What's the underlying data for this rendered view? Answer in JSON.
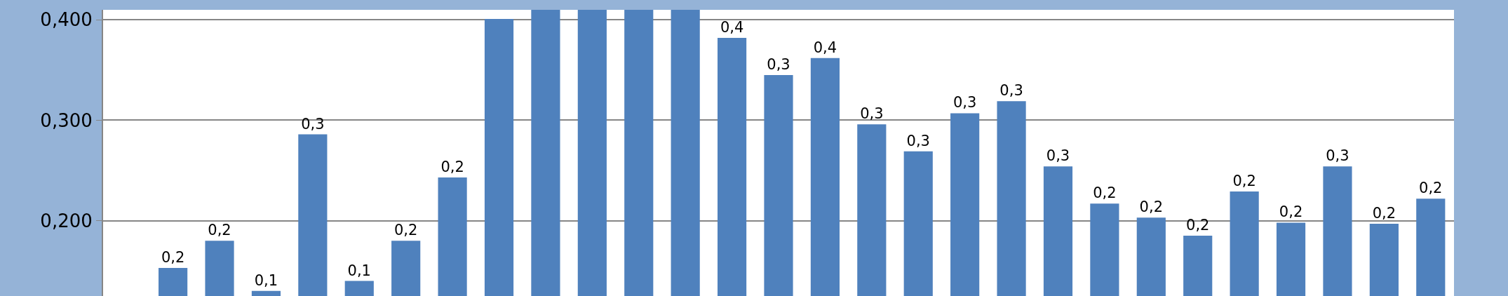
{
  "chart_data": {
    "type": "bar",
    "categories": [
      null,
      null,
      null,
      null,
      null,
      null,
      null,
      null,
      null,
      null,
      null,
      null,
      null,
      null,
      null,
      null,
      null,
      null,
      null,
      null,
      null,
      null,
      null,
      null,
      null,
      null,
      null,
      null,
      null
    ],
    "values": [
      null,
      0.153,
      0.18,
      0.13,
      0.286,
      0.14,
      0.18,
      0.243,
      0.401,
      0.41,
      0.41,
      0.41,
      0.41,
      0.382,
      0.345,
      0.362,
      0.296,
      0.269,
      0.307,
      0.319,
      0.254,
      0.217,
      0.203,
      0.185,
      0.229,
      0.198,
      0.254,
      0.197,
      0.222
    ],
    "value_labels": [
      null,
      "0,2",
      "0,2",
      "0,1",
      "0,3",
      "0,1",
      "0,2",
      "0,2",
      null,
      null,
      null,
      null,
      null,
      "0,4",
      "0,3",
      "0,4",
      "0,3",
      "0,3",
      "0,3",
      "0,3",
      "0,3",
      "0,2",
      "0,2",
      "0,2",
      "0,2",
      "0,2",
      "0,3",
      "0,2",
      "0,2"
    ],
    "color": "#4f81bd",
    "ylim": [
      0.125,
      0.41
    ],
    "yticks": [
      {
        "value": 0.2,
        "label": "0,200"
      },
      {
        "value": 0.3,
        "label": "0,300"
      },
      {
        "value": 0.4,
        "label": "0,400"
      }
    ],
    "grid": "y",
    "tick_labels": "y"
  }
}
